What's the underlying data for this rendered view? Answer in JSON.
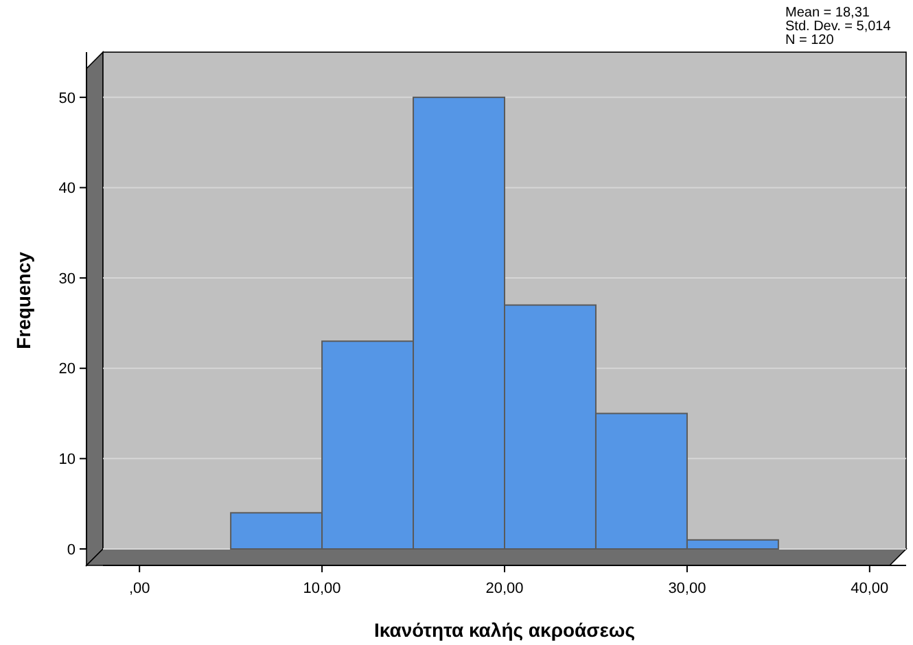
{
  "chart_data": {
    "type": "histogram",
    "xlabel": "Ικανότητα καλής ακροάσεως",
    "ylabel": "Frequency",
    "bins": [
      5,
      10,
      15,
      20,
      25,
      30,
      35
    ],
    "values": [
      4,
      23,
      50,
      27,
      15,
      1
    ],
    "color": "#5596e6",
    "xlim": [
      -2,
      42
    ],
    "xticks": [
      {
        "value": 0,
        "label": ",00"
      },
      {
        "value": 10,
        "label": "10,00"
      },
      {
        "value": 20,
        "label": "20,00"
      },
      {
        "value": 30,
        "label": "30,00"
      },
      {
        "value": 40,
        "label": "40,00"
      }
    ],
    "ylim": [
      0,
      55
    ],
    "yticks": [
      0,
      10,
      20,
      30,
      40,
      50
    ],
    "grid": "y",
    "annotations": [
      "Mean = 18,31",
      "Std. Dev. = 5,014",
      "N = 120"
    ]
  }
}
